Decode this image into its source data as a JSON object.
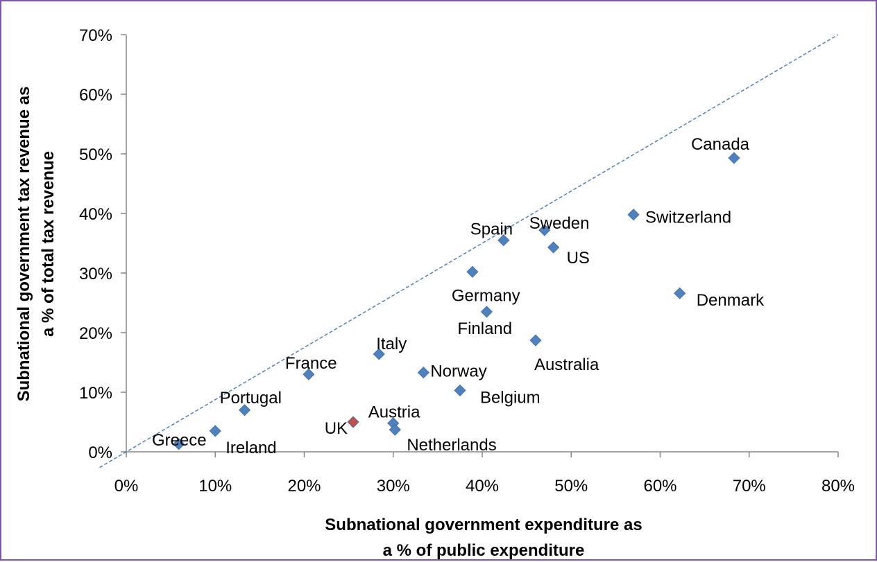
{
  "chart_data": {
    "type": "scatter",
    "xlabel": [
      "Subnational government expenditure as",
      "a % of public expenditure"
    ],
    "ylabel": [
      "Subnational government tax revenue as",
      "a % of total tax revenue"
    ],
    "xlim": [
      0,
      80
    ],
    "ylim": [
      0,
      70
    ],
    "x_ticks": [
      0,
      10,
      20,
      30,
      40,
      50,
      60,
      70,
      80
    ],
    "y_ticks": [
      0,
      10,
      20,
      30,
      40,
      50,
      60,
      70
    ],
    "x_tick_labels": [
      "0%",
      "10%",
      "20%",
      "30%",
      "40%",
      "50%",
      "60%",
      "70%",
      "80%"
    ],
    "y_tick_labels": [
      "0%",
      "10%",
      "20%",
      "30%",
      "40%",
      "50%",
      "60%",
      "70%"
    ],
    "reference_line": {
      "style": "dashed",
      "from": [
        0,
        0
      ],
      "to": [
        80,
        70
      ]
    },
    "grid": false,
    "colors": {
      "default_point": "#4f81bd",
      "highlight_point": "#c0504d",
      "reference_line": "#4f81bd"
    },
    "points": [
      {
        "label": "Greece",
        "x": 5.9,
        "y": 1.3
      },
      {
        "label": "Ireland",
        "x": 10.0,
        "y": 3.5
      },
      {
        "label": "Portugal",
        "x": 13.3,
        "y": 7.0
      },
      {
        "label": "France",
        "x": 20.5,
        "y": 13.0
      },
      {
        "label": "UK",
        "x": 25.5,
        "y": 5.0,
        "highlight": true
      },
      {
        "label": "Italy",
        "x": 28.4,
        "y": 16.4
      },
      {
        "label": "Austria",
        "x": 30.0,
        "y": 4.8
      },
      {
        "label": "Netherlands",
        "x": 30.2,
        "y": 3.7
      },
      {
        "label": "Norway",
        "x": 33.4,
        "y": 13.3
      },
      {
        "label": "Belgium",
        "x": 37.5,
        "y": 10.3
      },
      {
        "label": "Germany",
        "x": 38.9,
        "y": 30.2
      },
      {
        "label": "Finland",
        "x": 40.5,
        "y": 23.5
      },
      {
        "label": "Spain",
        "x": 42.4,
        "y": 35.5
      },
      {
        "label": "Australia",
        "x": 46.0,
        "y": 18.7
      },
      {
        "label": "Sweden",
        "x": 47.0,
        "y": 37.2
      },
      {
        "label": "US",
        "x": 48.0,
        "y": 34.3
      },
      {
        "label": "Switzerland",
        "x": 57.0,
        "y": 39.8
      },
      {
        "label": "Denmark",
        "x": 62.2,
        "y": 26.6
      },
      {
        "label": "Canada",
        "x": 68.3,
        "y": 49.3
      }
    ]
  }
}
